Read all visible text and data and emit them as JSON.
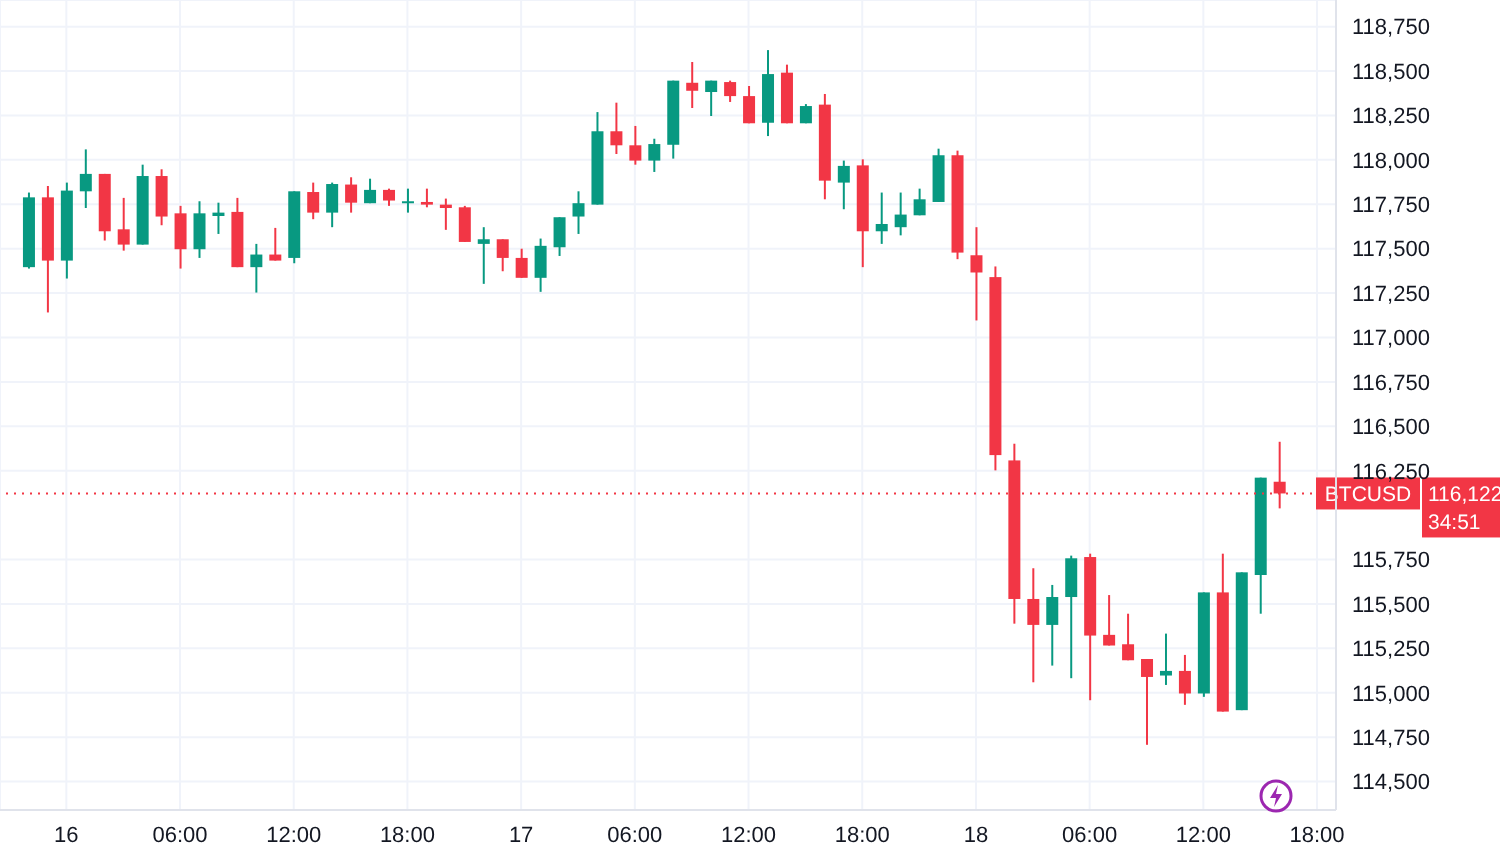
{
  "chart_data": {
    "type": "candlestick",
    "x": [
      "--07-15T22:00",
      "--07-15T23:00",
      "--07-16T00:00",
      "--07-16T01:00",
      "--07-16T02:00",
      "--07-16T03:00",
      "--07-16T04:00",
      "--07-16T05:00",
      "--07-16T06:00",
      "--07-16T07:00",
      "--07-16T08:00",
      "--07-16T09:00",
      "--07-16T10:00",
      "--07-16T11:00",
      "--07-16T12:00",
      "--07-16T13:00",
      "--07-16T14:00",
      "--07-16T15:00",
      "--07-16T16:00",
      "--07-16T17:00",
      "--07-16T18:00",
      "--07-16T19:00",
      "--07-16T20:00",
      "--07-16T21:00",
      "--07-16T22:00",
      "--07-16T23:00",
      "--07-17T00:00",
      "--07-17T01:00",
      "--07-17T02:00",
      "--07-17T03:00",
      "--07-17T04:00",
      "--07-17T05:00",
      "--07-17T06:00",
      "--07-17T07:00",
      "--07-17T08:00",
      "--07-17T09:00",
      "--07-17T10:00",
      "--07-17T11:00",
      "--07-17T12:00",
      "--07-17T13:00",
      "--07-17T14:00",
      "--07-17T15:00",
      "--07-17T16:00",
      "--07-17T17:00",
      "--07-17T18:00",
      "--07-17T19:00",
      "--07-17T20:00",
      "--07-17T21:00",
      "--07-17T22:00",
      "--07-17T23:00",
      "--07-18T00:00",
      "--07-18T01:00",
      "--07-18T02:00",
      "--07-18T03:00",
      "--07-18T04:00",
      "--07-18T05:00",
      "--07-18T06:00",
      "--07-18T07:00",
      "--07-18T08:00",
      "--07-18T09:00",
      "--07-18T10:00",
      "--07-18T11:00",
      "--07-18T12:00",
      "--07-18T13:00",
      "--07-18T14:00",
      "--07-18T15:00",
      "--07-18T16:00"
    ],
    "ohlc": [
      [
        117396,
        117816,
        117388,
        117789
      ],
      [
        117789,
        117853,
        117141,
        117433
      ],
      [
        117433,
        117872,
        117332,
        117827
      ],
      [
        117823,
        118059,
        117729,
        117921
      ],
      [
        117921,
        117921,
        117546,
        117598
      ],
      [
        117609,
        117786,
        117489,
        117523
      ],
      [
        117523,
        117973,
        117523,
        117909
      ],
      [
        117909,
        117947,
        117632,
        117681
      ],
      [
        117699,
        117741,
        117388,
        117497
      ],
      [
        117497,
        117767,
        117448,
        117699
      ],
      [
        117684,
        117759,
        117583,
        117703
      ],
      [
        117707,
        117786,
        117396,
        117396
      ],
      [
        117396,
        117527,
        117253,
        117467
      ],
      [
        117467,
        117617,
        117433,
        117433
      ],
      [
        117448,
        117823,
        117418,
        117823
      ],
      [
        117819,
        117872,
        117666,
        117703
      ],
      [
        117703,
        117872,
        117621,
        117864
      ],
      [
        117861,
        117902,
        117703,
        117759
      ],
      [
        117756,
        117894,
        117756,
        117831
      ],
      [
        117831,
        117838,
        117741,
        117771
      ],
      [
        117756,
        117838,
        117703,
        117767
      ],
      [
        117763,
        117838,
        117733,
        117748
      ],
      [
        117748,
        117782,
        117606,
        117729
      ],
      [
        117733,
        117741,
        117538,
        117538
      ],
      [
        117527,
        117621,
        117302,
        117553
      ],
      [
        117553,
        117553,
        117373,
        117448
      ],
      [
        117448,
        117500,
        117336,
        117336
      ],
      [
        117336,
        117557,
        117257,
        117516
      ],
      [
        117508,
        117677,
        117459,
        117677
      ],
      [
        117681,
        117823,
        117583,
        117756
      ],
      [
        117748,
        118269,
        117748,
        118161
      ],
      [
        118161,
        118322,
        118033,
        118082
      ],
      [
        118082,
        118191,
        117973,
        117996
      ],
      [
        117996,
        118119,
        117932,
        118089
      ],
      [
        118085,
        118446,
        118007,
        118446
      ],
      [
        118434,
        118551,
        118292,
        118389
      ],
      [
        118382,
        118446,
        118247,
        118446
      ],
      [
        118438,
        118446,
        118326,
        118359
      ],
      [
        118359,
        118416,
        118206,
        118206
      ],
      [
        118209,
        118618,
        118134,
        118483
      ],
      [
        118491,
        118536,
        118206,
        118206
      ],
      [
        118206,
        118314,
        118206,
        118303
      ],
      [
        118311,
        118371,
        117778,
        117883
      ],
      [
        117872,
        117996,
        117722,
        117966
      ],
      [
        117969,
        118003,
        117396,
        117598
      ],
      [
        117598,
        117816,
        117527,
        117639
      ],
      [
        117621,
        117816,
        117575,
        117692
      ],
      [
        117688,
        117838,
        117688,
        117778
      ],
      [
        117763,
        118063,
        117763,
        118026
      ],
      [
        118026,
        118052,
        117441,
        117478
      ],
      [
        117463,
        117621,
        117096,
        117366
      ],
      [
        117340,
        117400,
        116252,
        116338
      ],
      [
        116308,
        116402,
        115389,
        115528
      ],
      [
        115528,
        115701,
        115059,
        115382
      ],
      [
        115382,
        115607,
        115153,
        115539
      ],
      [
        115539,
        115772,
        115082,
        115757
      ],
      [
        115764,
        115783,
        114958,
        115322
      ],
      [
        115326,
        115550,
        115266,
        115266
      ],
      [
        115273,
        115445,
        115183,
        115183
      ],
      [
        115190,
        115190,
        114707,
        115089
      ],
      [
        115097,
        115333,
        115044,
        115123
      ],
      [
        115123,
        115213,
        114932,
        114996
      ],
      [
        114996,
        115565,
        114977,
        115565
      ],
      [
        115565,
        115783,
        114894,
        114894
      ],
      [
        114902,
        115678,
        114902,
        115678
      ],
      [
        115663,
        116211,
        115445,
        116211
      ],
      [
        116188,
        116413,
        116038,
        116122
      ]
    ],
    "colors": [
      "#089981",
      "#f23645",
      "#089981",
      "#089981",
      "#f23645",
      "#f23645",
      "#089981",
      "#f23645",
      "#f23645",
      "#089981",
      "#089981",
      "#f23645",
      "#089981",
      "#f23645",
      "#089981",
      "#f23645",
      "#089981",
      "#f23645",
      "#089981",
      "#f23645",
      "#089981",
      "#f23645",
      "#f23645",
      "#f23645",
      "#089981",
      "#f23645",
      "#f23645",
      "#089981",
      "#089981",
      "#089981",
      "#089981",
      "#f23645",
      "#f23645",
      "#089981",
      "#089981",
      "#f23645",
      "#089981",
      "#f23645",
      "#f23645",
      "#089981",
      "#f23645",
      "#089981",
      "#f23645",
      "#089981",
      "#f23645",
      "#089981",
      "#089981",
      "#089981",
      "#089981",
      "#f23645",
      "#f23645",
      "#f23645",
      "#f23645",
      "#f23645",
      "#089981",
      "#089981",
      "#f23645",
      "#f23645",
      "#f23645",
      "#f23645",
      "#089981",
      "#f23645",
      "#089981",
      "#f23645",
      "#089981",
      "#089981",
      "#f23645"
    ],
    "xlim": [
      "--07-15T20:30",
      "--07-18T19:00"
    ],
    "xticks": [
      {
        "value": "--07-16T00:00",
        "label": "16"
      },
      {
        "value": "--07-16T06:00",
        "label": "06:00"
      },
      {
        "value": "--07-16T12:00",
        "label": "12:00"
      },
      {
        "value": "--07-16T18:00",
        "label": "18:00"
      },
      {
        "value": "--07-17T00:00",
        "label": "17"
      },
      {
        "value": "--07-17T06:00",
        "label": "06:00"
      },
      {
        "value": "--07-17T12:00",
        "label": "12:00"
      },
      {
        "value": "--07-17T18:00",
        "label": "18:00"
      },
      {
        "value": "--07-18T00:00",
        "label": "18"
      },
      {
        "value": "--07-18T06:00",
        "label": "06:00"
      },
      {
        "value": "--07-18T12:00",
        "label": "12:00"
      },
      {
        "value": "--07-18T18:00",
        "label": "18:00"
      }
    ],
    "ylim": [
      114340,
      118900
    ],
    "yticks": [
      {
        "value": 114500,
        "label": "114,500"
      },
      {
        "value": 114750,
        "label": "114,750"
      },
      {
        "value": 115000,
        "label": "115,000"
      },
      {
        "value": 115250,
        "label": "115,250"
      },
      {
        "value": 115500,
        "label": "115,500"
      },
      {
        "value": 115750,
        "label": "115,750"
      },
      {
        "value": 116250,
        "label": "116,250"
      },
      {
        "value": 116500,
        "label": "116,500"
      },
      {
        "value": 116750,
        "label": "116,750"
      },
      {
        "value": 117000,
        "label": "117,000"
      },
      {
        "value": 117250,
        "label": "117,250"
      },
      {
        "value": 117500,
        "label": "117,500"
      },
      {
        "value": 117750,
        "label": "117,750"
      },
      {
        "value": 118000,
        "label": "118,000"
      },
      {
        "value": 118250,
        "label": "118,250"
      },
      {
        "value": 118500,
        "label": "118,500"
      },
      {
        "value": 118750,
        "label": "118,750"
      }
    ],
    "grid": true,
    "ref_lines": [
      {
        "axis": "y",
        "value": 116122,
        "label": "BTCUSD",
        "color": "#f23645",
        "line_style": "dotted"
      }
    ],
    "annotations": [
      "116,122",
      "34:51"
    ]
  }
}
